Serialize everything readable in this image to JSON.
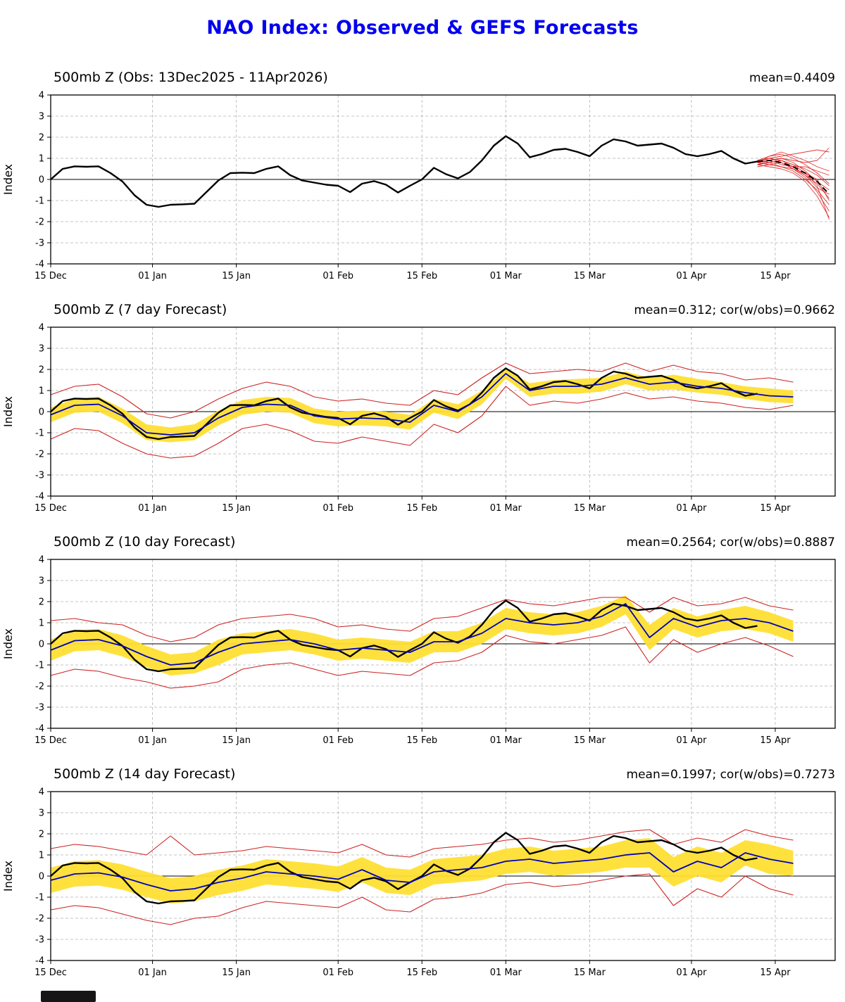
{
  "page": {
    "title": "NAO Index: Observed & GEFS Forecasts",
    "title_color": "#0000ee"
  },
  "colors": {
    "obs": "#000000",
    "forecast_mean": "#0000bb",
    "ensemble": "#dd2222",
    "envelope": "#cc2222",
    "band": "#ffdf33",
    "grid": "#b3b3b3"
  },
  "chart_data": {
    "type": "line",
    "title": "NAO Index: Observed & GEFS Forecasts",
    "ylabel": "Index",
    "ylim": [
      -4,
      4
    ],
    "xlim": [
      0,
      131
    ],
    "x_unit": "days since 15 Dec 2025",
    "grid": "dashed",
    "xticks": [
      {
        "x": 0,
        "label": "15 Dec"
      },
      {
        "x": 17,
        "label": "01 Jan"
      },
      {
        "x": 31,
        "label": "15 Jan"
      },
      {
        "x": 48,
        "label": "01 Feb"
      },
      {
        "x": 62,
        "label": "15 Feb"
      },
      {
        "x": 76,
        "label": "01 Mar"
      },
      {
        "x": 90,
        "label": "15 Mar"
      },
      {
        "x": 107,
        "label": "01 Apr"
      },
      {
        "x": 121,
        "label": "15 Apr"
      }
    ],
    "obs": {
      "name": "Observed NAO index",
      "x_start": 0,
      "x_step": 2,
      "values": [
        0.0,
        0.5,
        0.62,
        0.6,
        0.62,
        0.3,
        -0.1,
        -0.75,
        -1.2,
        -1.3,
        -1.2,
        -1.18,
        -1.15,
        -0.6,
        -0.05,
        0.3,
        0.32,
        0.3,
        0.5,
        0.62,
        0.2,
        -0.05,
        -0.15,
        -0.25,
        -0.3,
        -0.6,
        -0.2,
        -0.08,
        -0.25,
        -0.62,
        -0.3,
        0.0,
        0.55,
        0.25,
        0.05,
        0.35,
        0.9,
        1.6,
        2.05,
        1.7,
        1.05,
        1.2,
        1.4,
        1.45,
        1.3,
        1.1,
        1.6,
        1.9,
        1.8,
        1.6,
        1.65,
        1.7,
        1.5,
        1.2,
        1.1,
        1.2,
        1.35,
        1.0,
        0.75,
        0.85
      ]
    },
    "panels": [
      {
        "id": "obs",
        "title": "500mb Z (Obs: 13Dec2025 - 11Apr2026)",
        "annotation": "mean=0.4409",
        "ensemble": {
          "x": [
            118,
            120,
            122,
            124,
            126,
            128,
            130
          ],
          "mean": [
            0.85,
            0.9,
            0.8,
            0.6,
            0.3,
            -0.1,
            -0.7
          ],
          "members": [
            [
              0.8,
              1.0,
              1.1,
              1.2,
              1.3,
              1.4,
              1.3
            ],
            [
              0.7,
              0.9,
              1.0,
              0.9,
              0.8,
              0.9,
              1.5
            ],
            [
              0.8,
              1.0,
              0.9,
              0.7,
              0.5,
              0.2,
              -0.3
            ],
            [
              0.9,
              0.8,
              0.9,
              0.6,
              0.2,
              -0.2,
              -0.9
            ],
            [
              0.7,
              0.8,
              0.6,
              0.4,
              0.0,
              -0.5,
              -1.2
            ],
            [
              0.8,
              0.9,
              1.0,
              0.8,
              0.4,
              -0.1,
              -0.5
            ],
            [
              0.6,
              0.7,
              0.8,
              0.5,
              0.1,
              -0.6,
              -1.5
            ],
            [
              0.8,
              1.1,
              1.2,
              1.0,
              0.7,
              0.3,
              -0.2
            ],
            [
              0.7,
              0.6,
              0.5,
              0.3,
              -0.1,
              -0.8,
              -1.8
            ],
            [
              0.9,
              1.0,
              0.8,
              0.5,
              0.3,
              0.0,
              -1.0
            ],
            [
              0.8,
              0.9,
              0.7,
              0.6,
              0.6,
              0.4,
              0.2
            ],
            [
              0.7,
              0.8,
              0.9,
              0.7,
              0.3,
              -0.3,
              -1.9
            ],
            [
              0.8,
              0.7,
              0.6,
              0.5,
              0.2,
              -0.4,
              -0.7
            ],
            [
              0.9,
              1.1,
              1.3,
              1.1,
              0.9,
              0.6,
              0.4
            ]
          ]
        }
      },
      {
        "id": "f7",
        "title": "500mb Z (7 day Forecast)",
        "annotation": "mean=0.312; cor(w/obs)=0.9662",
        "x_start": 0,
        "x_step": 4,
        "blue": [
          -0.15,
          0.3,
          0.35,
          -0.2,
          -1.0,
          -1.1,
          -1.0,
          -0.3,
          0.2,
          0.35,
          0.3,
          -0.2,
          -0.35,
          -0.3,
          -0.35,
          -0.5,
          0.3,
          0.0,
          0.7,
          1.8,
          1.0,
          1.2,
          1.2,
          1.3,
          1.6,
          1.3,
          1.4,
          1.2,
          1.1,
          0.9,
          0.75,
          0.7
        ],
        "yellow_upper": [
          0.2,
          0.6,
          0.7,
          0.15,
          -0.6,
          -0.75,
          -0.6,
          0.05,
          0.55,
          0.7,
          0.65,
          0.15,
          0.0,
          0.05,
          0.0,
          -0.15,
          0.6,
          0.35,
          1.0,
          2.0,
          1.35,
          1.5,
          1.55,
          1.6,
          1.9,
          1.6,
          1.75,
          1.55,
          1.4,
          1.2,
          1.1,
          1.0
        ],
        "yellow_lower": [
          -0.5,
          -0.05,
          0.0,
          -0.55,
          -1.35,
          -1.45,
          -1.35,
          -0.65,
          -0.15,
          0.0,
          -0.05,
          -0.55,
          -0.7,
          -0.65,
          -0.7,
          -0.85,
          -0.05,
          -0.35,
          0.35,
          1.55,
          0.7,
          0.85,
          0.85,
          0.95,
          1.3,
          1.0,
          1.05,
          0.9,
          0.8,
          0.6,
          0.45,
          0.4
        ],
        "red_upper": [
          0.8,
          1.2,
          1.3,
          0.7,
          -0.1,
          -0.3,
          0.0,
          0.6,
          1.1,
          1.4,
          1.2,
          0.7,
          0.5,
          0.6,
          0.4,
          0.3,
          1.0,
          0.8,
          1.6,
          2.3,
          1.8,
          1.9,
          2.0,
          1.9,
          2.3,
          1.9,
          2.2,
          1.9,
          1.8,
          1.5,
          1.6,
          1.4
        ],
        "red_lower": [
          -1.3,
          -0.8,
          -0.9,
          -1.5,
          -2.0,
          -2.2,
          -2.1,
          -1.5,
          -0.8,
          -0.6,
          -0.9,
          -1.4,
          -1.5,
          -1.2,
          -1.4,
          -1.6,
          -0.6,
          -1.0,
          -0.2,
          1.2,
          0.3,
          0.5,
          0.4,
          0.6,
          0.9,
          0.6,
          0.7,
          0.5,
          0.4,
          0.2,
          0.1,
          0.3
        ]
      },
      {
        "id": "f10",
        "title": "500mb Z (10 day Forecast)",
        "annotation": "mean=0.2564; cor(w/obs)=0.8887",
        "x_start": 0,
        "x_step": 4,
        "blue": [
          -0.3,
          0.15,
          0.2,
          -0.1,
          -0.6,
          -1.0,
          -0.9,
          -0.4,
          0.0,
          0.1,
          0.2,
          0.0,
          -0.3,
          -0.2,
          -0.3,
          -0.4,
          0.1,
          0.1,
          0.5,
          1.2,
          1.0,
          0.9,
          1.0,
          1.3,
          1.9,
          0.3,
          1.2,
          0.8,
          1.1,
          1.2,
          1.0,
          0.6
        ],
        "yellow_upper": [
          0.2,
          0.65,
          0.7,
          0.4,
          -0.1,
          -0.5,
          -0.4,
          0.2,
          0.5,
          0.6,
          0.7,
          0.5,
          0.2,
          0.3,
          0.2,
          0.1,
          0.6,
          0.6,
          1.0,
          1.7,
          1.5,
          1.4,
          1.5,
          1.8,
          2.3,
          0.9,
          1.7,
          1.3,
          1.6,
          1.8,
          1.5,
          1.1
        ],
        "yellow_lower": [
          -0.8,
          -0.35,
          -0.3,
          -0.6,
          -1.1,
          -1.5,
          -1.4,
          -1.0,
          -0.5,
          -0.4,
          -0.3,
          -0.5,
          -0.8,
          -0.7,
          -0.8,
          -0.9,
          -0.4,
          -0.4,
          0.0,
          0.7,
          0.5,
          0.4,
          0.5,
          0.8,
          1.4,
          -0.3,
          0.7,
          0.3,
          0.6,
          0.7,
          0.5,
          0.1
        ],
        "red_upper": [
          1.1,
          1.2,
          1.0,
          0.9,
          0.4,
          0.1,
          0.3,
          0.9,
          1.2,
          1.3,
          1.4,
          1.2,
          0.8,
          0.9,
          0.7,
          0.6,
          1.2,
          1.3,
          1.7,
          2.1,
          1.9,
          1.8,
          2.0,
          2.2,
          2.2,
          1.5,
          2.2,
          1.8,
          1.9,
          2.2,
          1.8,
          1.6
        ],
        "red_lower": [
          -1.5,
          -1.2,
          -1.3,
          -1.6,
          -1.8,
          -2.1,
          -2.0,
          -1.8,
          -1.2,
          -1.0,
          -0.9,
          -1.2,
          -1.5,
          -1.3,
          -1.4,
          -1.5,
          -0.9,
          -0.8,
          -0.4,
          0.4,
          0.1,
          0.0,
          0.2,
          0.4,
          0.8,
          -0.9,
          0.2,
          -0.4,
          0.0,
          0.3,
          -0.1,
          -0.6
        ]
      },
      {
        "id": "f14",
        "title": "500mb Z (14 day Forecast)",
        "annotation": "mean=0.1997; cor(w/obs)=0.7273",
        "x_start": 0,
        "x_step": 4,
        "blue": [
          -0.2,
          0.1,
          0.15,
          -0.05,
          -0.4,
          -0.7,
          -0.6,
          -0.3,
          -0.1,
          0.2,
          0.1,
          0.0,
          -0.15,
          0.3,
          -0.2,
          -0.3,
          0.2,
          0.3,
          0.4,
          0.7,
          0.8,
          0.6,
          0.7,
          0.8,
          1.0,
          1.1,
          0.2,
          0.7,
          0.4,
          1.1,
          0.8,
          0.6
        ],
        "yellow_upper": [
          0.4,
          0.7,
          0.75,
          0.55,
          0.2,
          -0.1,
          0.0,
          0.3,
          0.5,
          0.8,
          0.7,
          0.6,
          0.45,
          0.9,
          0.4,
          0.3,
          0.8,
          0.9,
          1.0,
          1.3,
          1.4,
          1.2,
          1.3,
          1.4,
          1.7,
          1.8,
          0.9,
          1.4,
          1.1,
          1.7,
          1.5,
          1.2
        ],
        "yellow_lower": [
          -0.8,
          -0.5,
          -0.45,
          -0.65,
          -1.0,
          -1.3,
          -1.2,
          -0.9,
          -0.7,
          -0.4,
          -0.5,
          -0.6,
          -0.75,
          -0.3,
          -0.8,
          -0.9,
          -0.4,
          -0.3,
          -0.2,
          0.1,
          0.2,
          0.0,
          0.1,
          0.2,
          0.4,
          0.4,
          -0.5,
          0.0,
          -0.3,
          0.5,
          0.1,
          0.0
        ],
        "red_upper": [
          1.3,
          1.5,
          1.4,
          1.2,
          1.0,
          1.9,
          1.0,
          1.1,
          1.2,
          1.4,
          1.3,
          1.2,
          1.1,
          1.5,
          1.0,
          0.9,
          1.3,
          1.4,
          1.5,
          1.7,
          1.8,
          1.6,
          1.7,
          1.9,
          2.1,
          2.2,
          1.5,
          1.8,
          1.6,
          2.2,
          1.9,
          1.7
        ],
        "red_lower": [
          -1.6,
          -1.4,
          -1.5,
          -1.8,
          -2.1,
          -2.3,
          -2.0,
          -1.9,
          -1.5,
          -1.2,
          -1.3,
          -1.4,
          -1.5,
          -1.0,
          -1.6,
          -1.7,
          -1.1,
          -1.0,
          -0.8,
          -0.4,
          -0.3,
          -0.5,
          -0.4,
          -0.2,
          0.0,
          0.1,
          -1.4,
          -0.6,
          -1.0,
          0.0,
          -0.6,
          -0.9
        ]
      }
    ]
  }
}
